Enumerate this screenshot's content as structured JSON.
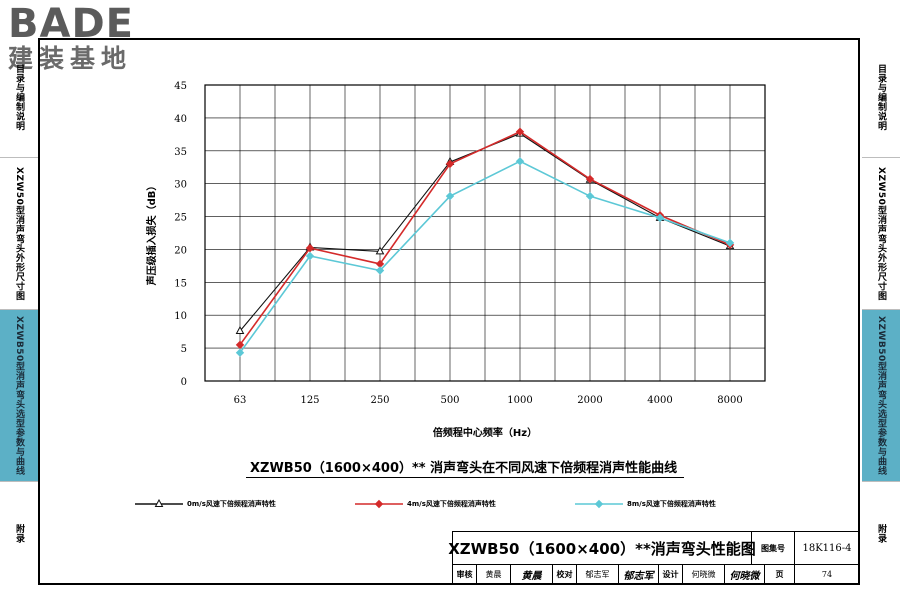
{
  "logo": {
    "brand": "BADE",
    "subtitle": "建装基地"
  },
  "sidebar_left": [
    {
      "label": "目录与编制说明",
      "active": false
    },
    {
      "label": "XZW50型消声弯头外形尺寸图",
      "active": false
    },
    {
      "label": "XZWB50型消声弯头选型参数与曲线",
      "active": true
    },
    {
      "label": "附录",
      "active": false
    }
  ],
  "sidebar_right": [
    {
      "label": "目录与编制说明",
      "active": false
    },
    {
      "label": "XZW50型消声弯头外形尺寸图",
      "active": false
    },
    {
      "label": "XZWB50型消声弯头选型参数与曲线",
      "active": true
    },
    {
      "label": "附录",
      "active": false
    }
  ],
  "chart_title": "XZWB50（1600×400）** 消声弯头在不同风速下倍频程消声性能曲线",
  "chart_data": {
    "type": "line",
    "xlabel": "倍频程中心频率（Hz）",
    "ylabel": "声压级插入损失（dB）",
    "categories": [
      "63",
      "125",
      "250",
      "500",
      "1000",
      "2000",
      "4000",
      "8000"
    ],
    "ylim": [
      0,
      45
    ],
    "yticks": [
      0,
      5,
      10,
      15,
      20,
      25,
      30,
      35,
      40,
      45
    ],
    "grid": true,
    "series": [
      {
        "name": "0m/s风速下倍频程消声特性",
        "color": "#111111",
        "marker": "triangle",
        "values": [
          7.6,
          20.3,
          19.7,
          33.3,
          37.6,
          30.6,
          24.8,
          20.5
        ]
      },
      {
        "name": "4m/s风速下倍频程消声特性",
        "color": "#d42a2a",
        "marker": "diamond",
        "values": [
          5.5,
          20.2,
          17.8,
          33.0,
          37.9,
          30.7,
          25.2,
          20.7
        ]
      },
      {
        "name": "8m/s风速下倍频程消声特性",
        "color": "#5cc8d6",
        "marker": "diamond",
        "values": [
          4.3,
          19.0,
          16.8,
          28.1,
          33.4,
          28.1,
          24.8,
          21.0
        ]
      }
    ]
  },
  "title_block": {
    "title": "XZWB50（1600×400）**消声弯头性能图",
    "atlas_label": "图集号",
    "atlas_no": "18K116-4",
    "review_label": "审核",
    "review_name": "黄晨",
    "review_sign": "黄晨",
    "check_label": "校对",
    "check_name": "郁志军",
    "check_sign": "郁志军",
    "design_label": "设计",
    "design_name": "何晓微",
    "design_sign": "何晓微",
    "page_label": "页",
    "page_no": "74"
  }
}
